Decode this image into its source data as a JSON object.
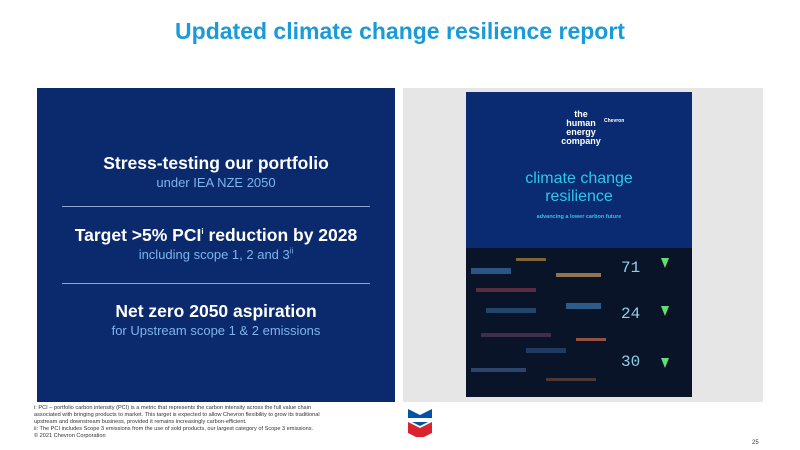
{
  "slide": {
    "title": "Updated climate change resilience report",
    "page_number": "25"
  },
  "panel": {
    "stress_head": "Stress-testing our portfolio",
    "stress_sub": "under IEA NZE 2050",
    "target_head": "Target >5% PCI",
    "target_head_sup": "i",
    "target_head_rest": " reduction by 2028",
    "target_sub": "including scope 1, 2 and 3",
    "target_sub_sup": "ii",
    "netzero_head": "Net zero 2050 aspiration",
    "netzero_sub": "for Upstream scope 1 & 2 emissions"
  },
  "cover": {
    "logo_line1": "the",
    "logo_line2": "human",
    "logo_line3": "energy",
    "logo_line4": "company",
    "logo_brand": "Chevron",
    "title_line1": "climate change",
    "title_line2": "resilience",
    "subtitle": "advancing a lower carbon future",
    "screen_numbers": [
      "71",
      "24",
      "30"
    ]
  },
  "footnotes": {
    "line1": "i: PCI – portfolio carbon intensity (PCI) is a metric that represents the carbon intensity across the full value chain",
    "line2": "associated with bringing products to market.  This target is expected to allow Chevron flexibility to grow its traditional",
    "line3": "upstream and downstream business, provided it remains increasingly carbon-efficient.",
    "line4": "ii: The PCI includes Scope 3 emissions from the use of sold products, our largest category of Scope 3 emissions.",
    "copyright": "© 2021 Chevron Corporation"
  },
  "colors": {
    "title_blue": "#1a9ad6",
    "panel_navy": "#0b2a6e",
    "sub_blue": "#7fb4ea",
    "cover_cyan": "#2fc7ea",
    "chevron_red": "#d9232e",
    "chevron_blue": "#0054a4"
  }
}
